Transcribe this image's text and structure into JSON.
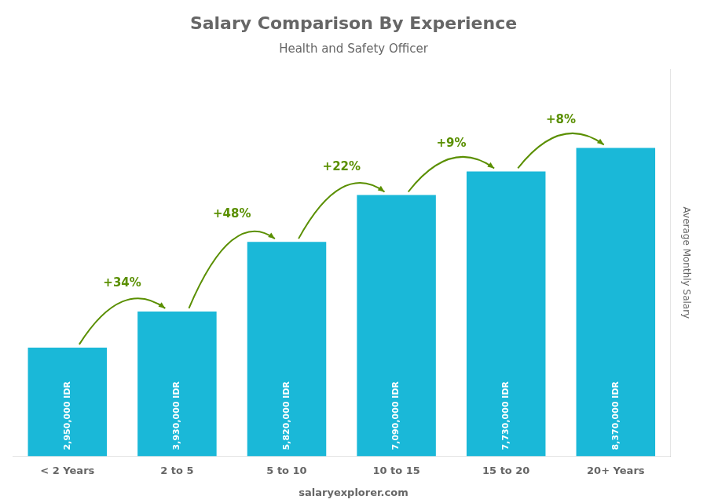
{
  "chart_data": {
    "type": "bar",
    "title": "Salary Comparison By Experience",
    "subtitle": "Health and Safety Officer",
    "ylabel": "Average Monthly Salary",
    "categories": [
      "< 2 Years",
      "2 to 5",
      "5 to 10",
      "10 to 15",
      "15 to 20",
      "20+ Years"
    ],
    "values": [
      2950000,
      3930000,
      5820000,
      7090000,
      7730000,
      8370000
    ],
    "value_labels": [
      "2,950,000 IDR",
      "3,930,000 IDR",
      "5,820,000 IDR",
      "7,090,000 IDR",
      "7,730,000 IDR",
      "8,370,000 IDR"
    ],
    "data_labels": true,
    "annotations": [
      "+34%",
      "+48%",
      "+22%",
      "+9%",
      "+8%",
      "salaryexplorer.com"
    ],
    "color": "#1ab8d8",
    "ylim": [
      0,
      10500000
    ],
    "tick_labels": "x",
    "grid": false
  }
}
